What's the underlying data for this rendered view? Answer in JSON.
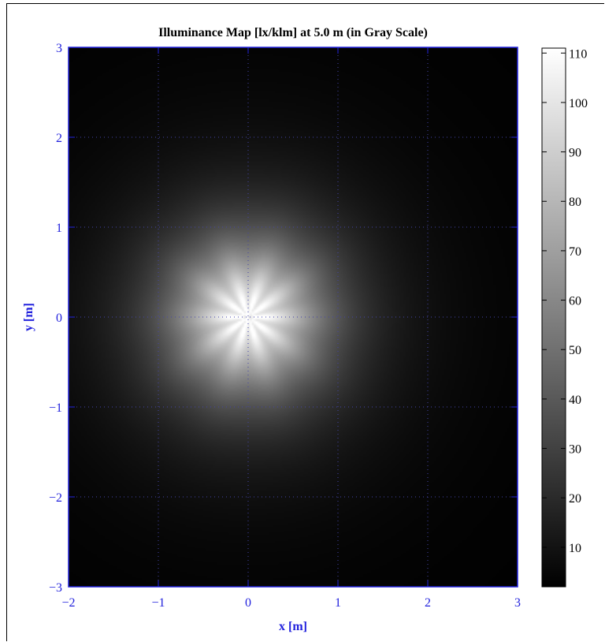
{
  "chart_data": {
    "type": "heatmap",
    "title": "Illuminance Map [lx/klm] at 5.0 m (in Gray Scale)",
    "xlabel": "x [m]",
    "ylabel": "y [m]",
    "xlim": [
      -2,
      3
    ],
    "ylim": [
      -3,
      3
    ],
    "x_ticks": [
      -2,
      -1,
      0,
      1,
      2,
      3
    ],
    "y_ticks": [
      -3,
      -2,
      -1,
      0,
      1,
      2,
      3
    ],
    "x_tick_labels": [
      "−2",
      "−1",
      "0",
      "1",
      "2",
      "3"
    ],
    "y_tick_labels": [
      "−3",
      "−2",
      "−1",
      "0",
      "1",
      "2",
      "3"
    ],
    "grid": true,
    "colormap": "gray",
    "colorbar": {
      "min": 2,
      "max": 111,
      "ticks": [
        10,
        20,
        30,
        40,
        50,
        60,
        70,
        80,
        90,
        100,
        110
      ],
      "tick_labels": [
        "10",
        "20",
        "30",
        "40",
        "50",
        "60",
        "70",
        "80",
        "90",
        "100",
        "110"
      ]
    },
    "peak": {
      "x": 0,
      "y": 0,
      "value": 111
    },
    "background_value": 2
  },
  "colors": {
    "axis": "#2222dd",
    "grid": "#4444aa",
    "text": "#000000"
  }
}
